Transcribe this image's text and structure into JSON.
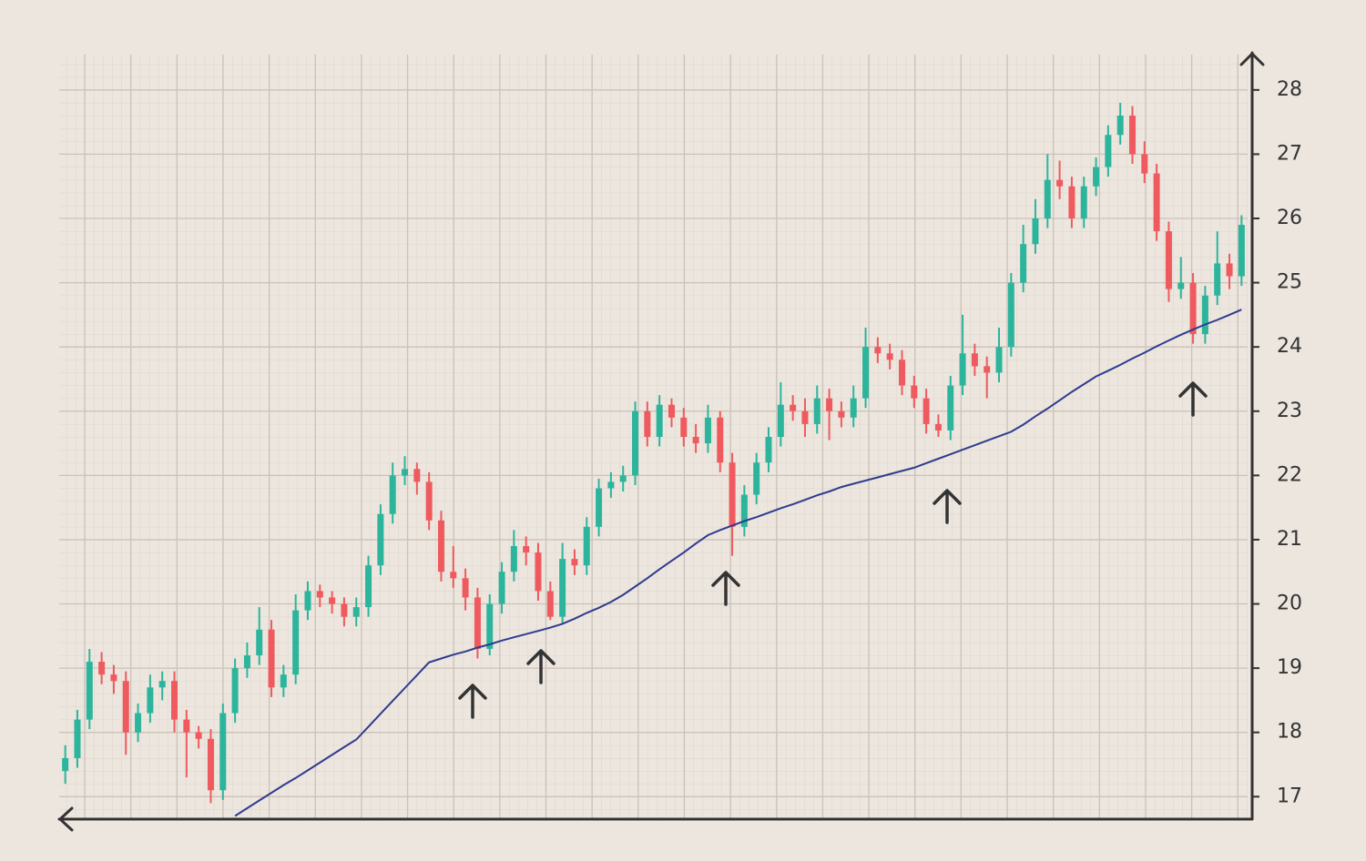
{
  "chart_data": {
    "type": "candlestick",
    "categories": [
      null,
      null,
      null,
      null,
      null,
      null,
      null,
      null,
      null,
      null,
      null,
      null,
      null,
      null,
      null,
      null,
      null,
      null,
      null,
      null,
      null,
      null,
      null,
      null,
      null,
      null,
      null,
      null,
      null,
      null,
      null,
      null,
      null,
      null,
      null,
      null,
      null,
      null,
      null,
      null,
      null,
      null,
      null,
      null,
      null,
      null,
      null,
      null,
      null,
      null,
      null,
      null,
      null,
      null,
      null,
      null,
      null,
      null,
      null,
      null,
      null,
      null,
      null,
      null,
      null,
      null,
      null,
      null,
      null,
      null,
      null,
      null,
      null,
      null,
      null,
      null,
      null,
      null,
      null,
      null,
      null,
      null,
      null,
      null,
      null,
      null,
      null,
      null,
      null,
      null,
      null,
      null,
      null,
      null,
      null,
      null,
      null,
      null
    ],
    "open": [
      17.4,
      17.6,
      18.2,
      19.1,
      18.9,
      18.8,
      18.0,
      18.3,
      18.7,
      18.8,
      18.2,
      18.0,
      17.9,
      17.1,
      18.3,
      19.0,
      19.2,
      19.6,
      18.7,
      18.9,
      19.9,
      20.2,
      20.1,
      20.0,
      19.8,
      19.95,
      20.6,
      21.4,
      22.0,
      22.1,
      21.9,
      21.3,
      20.5,
      20.4,
      20.1,
      19.3,
      20.0,
      20.5,
      20.9,
      20.8,
      20.2,
      19.8,
      20.7,
      20.6,
      21.2,
      21.8,
      21.9,
      22.0,
      23.0,
      22.6,
      23.1,
      22.9,
      22.6,
      22.5,
      22.9,
      22.2,
      21.2,
      21.7,
      22.2,
      22.6,
      23.1,
      23.0,
      22.8,
      23.2,
      23.0,
      22.9,
      23.2,
      24.0,
      23.9,
      23.8,
      23.4,
      23.2,
      22.8,
      22.7,
      23.4,
      23.9,
      23.7,
      23.6,
      24.0,
      25.0,
      25.6,
      26.0,
      26.6,
      26.5,
      26.0,
      26.5,
      26.8,
      27.3,
      27.6,
      27.0,
      26.7,
      25.8,
      24.9,
      25.0,
      24.2,
      24.8,
      25.3,
      25.1
    ],
    "high": [
      17.8,
      18.35,
      19.3,
      19.25,
      19.05,
      18.95,
      18.45,
      18.9,
      18.95,
      18.95,
      18.35,
      18.1,
      18.05,
      18.45,
      19.15,
      19.4,
      19.95,
      19.75,
      19.05,
      20.15,
      20.35,
      20.3,
      20.2,
      20.1,
      20.1,
      20.75,
      21.55,
      22.2,
      22.3,
      22.2,
      22.05,
      21.45,
      20.9,
      20.55,
      20.25,
      20.15,
      20.65,
      21.15,
      21.05,
      20.95,
      20.35,
      20.95,
      20.85,
      21.35,
      21.95,
      22.05,
      22.15,
      23.15,
      23.15,
      23.25,
      23.2,
      23.05,
      22.8,
      23.1,
      23.0,
      22.35,
      21.85,
      22.35,
      22.75,
      23.45,
      23.25,
      23.2,
      23.4,
      23.35,
      23.15,
      23.4,
      24.3,
      24.15,
      24.05,
      23.95,
      23.55,
      23.35,
      22.95,
      23.55,
      24.5,
      24.05,
      23.85,
      24.3,
      25.15,
      25.9,
      26.3,
      27.0,
      26.9,
      26.65,
      26.65,
      26.95,
      27.45,
      27.8,
      27.75,
      27.2,
      26.85,
      25.95,
      25.4,
      25.15,
      24.95,
      25.8,
      25.45,
      26.05
    ],
    "low": [
      17.2,
      17.45,
      18.05,
      18.75,
      18.6,
      17.65,
      17.85,
      18.15,
      18.5,
      18.0,
      17.3,
      17.75,
      16.9,
      16.95,
      18.15,
      18.85,
      19.05,
      18.55,
      18.55,
      18.75,
      19.75,
      19.95,
      19.85,
      19.65,
      19.65,
      19.8,
      20.45,
      21.25,
      21.85,
      21.7,
      21.15,
      20.35,
      20.25,
      19.9,
      19.15,
      19.2,
      19.85,
      20.35,
      20.6,
      20.05,
      19.75,
      19.7,
      20.45,
      20.45,
      21.05,
      21.65,
      21.75,
      21.85,
      22.45,
      22.45,
      22.75,
      22.45,
      22.35,
      22.35,
      22.05,
      20.75,
      21.05,
      21.55,
      22.05,
      22.45,
      22.85,
      22.6,
      22.65,
      22.55,
      22.75,
      22.75,
      23.05,
      23.75,
      23.65,
      23.25,
      23.05,
      22.65,
      22.6,
      22.55,
      23.25,
      23.55,
      23.2,
      23.45,
      23.85,
      24.85,
      25.45,
      25.85,
      26.3,
      25.85,
      25.85,
      26.35,
      26.65,
      27.15,
      26.85,
      26.55,
      25.65,
      24.7,
      24.75,
      24.05,
      24.05,
      24.65,
      24.9,
      24.95
    ],
    "close": [
      17.6,
      18.2,
      19.1,
      18.9,
      18.8,
      18.0,
      18.3,
      18.7,
      18.8,
      18.2,
      18.0,
      17.9,
      17.1,
      18.3,
      19.0,
      19.2,
      19.6,
      18.7,
      18.9,
      19.9,
      20.2,
      20.1,
      20.0,
      19.8,
      19.95,
      20.6,
      21.4,
      22.0,
      22.1,
      21.9,
      21.3,
      20.5,
      20.4,
      20.1,
      19.3,
      20.0,
      20.5,
      20.9,
      20.8,
      20.2,
      19.8,
      20.7,
      20.6,
      21.2,
      21.8,
      21.9,
      22.0,
      23.0,
      22.6,
      23.1,
      22.9,
      22.6,
      22.5,
      22.9,
      22.2,
      21.2,
      21.7,
      22.2,
      22.6,
      23.1,
      23.0,
      22.8,
      23.2,
      23.0,
      22.9,
      23.2,
      24.0,
      23.9,
      23.8,
      23.4,
      23.2,
      22.8,
      22.7,
      23.4,
      23.9,
      23.7,
      23.6,
      24.0,
      25.0,
      25.6,
      26.0,
      26.6,
      26.5,
      26.0,
      26.5,
      26.8,
      27.3,
      27.6,
      27.0,
      26.7,
      25.8,
      24.9,
      25.0,
      24.2,
      24.8,
      25.3,
      25.1,
      25.9
    ],
    "up_color": "#2cb59c",
    "down_color": "#ef5a5f",
    "moving_average": {
      "color": "#2f3b8f",
      "values": [
        null,
        null,
        null,
        null,
        null,
        null,
        null,
        null,
        null,
        null,
        null,
        null,
        null,
        null,
        16.7,
        16.82,
        16.94,
        17.06,
        17.18,
        17.29,
        17.41,
        17.53,
        17.65,
        17.77,
        17.89,
        18.09,
        18.29,
        18.49,
        18.69,
        18.89,
        19.09,
        19.15,
        19.21,
        19.26,
        19.32,
        19.37,
        19.43,
        19.48,
        19.53,
        19.58,
        19.63,
        19.69,
        19.77,
        19.86,
        19.94,
        20.03,
        20.14,
        20.27,
        20.4,
        20.54,
        20.67,
        20.8,
        20.94,
        21.07,
        21.15,
        21.22,
        21.29,
        21.35,
        21.42,
        21.49,
        21.55,
        21.62,
        21.69,
        21.75,
        21.82,
        21.87,
        21.92,
        21.97,
        22.02,
        22.07,
        22.12,
        22.19,
        22.26,
        22.33,
        22.4,
        22.47,
        22.54,
        22.61,
        22.68,
        22.79,
        22.92,
        23.04,
        23.17,
        23.3,
        23.42,
        23.54,
        23.63,
        23.72,
        23.82,
        23.91,
        24.01,
        24.1,
        24.19,
        24.27,
        24.35,
        24.42,
        24.5,
        24.58
      ]
    },
    "ylim": [
      16.65,
      28.55
    ],
    "yticks": [
      17,
      18,
      19,
      20,
      21,
      22,
      23,
      24,
      25,
      26,
      27,
      28
    ],
    "grid": true
  }
}
